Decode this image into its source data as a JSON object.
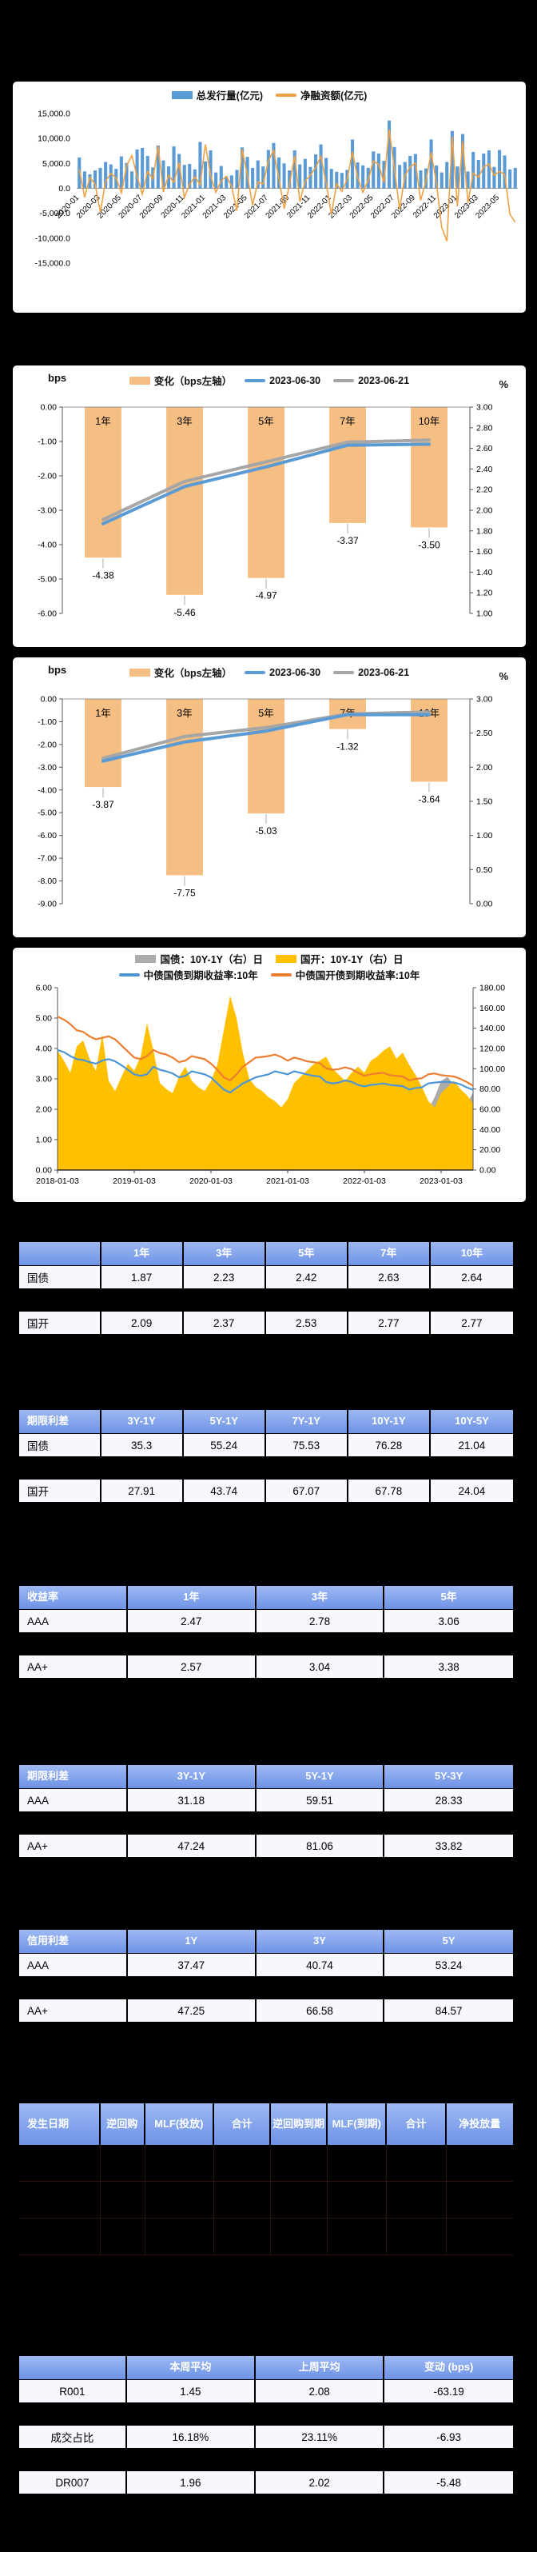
{
  "page": {
    "background": "#000000",
    "card_background": "#ffffff",
    "table_header_color": "#7d9fe8"
  },
  "chart_data": [
    {
      "id": "issuance",
      "type": "bar",
      "title": "",
      "legend": [
        "总发行量(亿元)",
        "净融资额(亿元)"
      ],
      "legend_position": "top",
      "bar_color": "#5b9bd5",
      "line_color": "#efa143",
      "ylim": [
        -15000,
        15000
      ],
      "ytick": 5000,
      "grid": false,
      "x_tick_labels": [
        "2020-01",
        "2020-03",
        "2020-05",
        "2020-07",
        "2020-09",
        "2020-11",
        "2021-01",
        "2021-03",
        "2021-05",
        "2021-07",
        "2021-09",
        "2021-11",
        "2022-01",
        "2022-03",
        "2022-05",
        "2022-07",
        "2022-09",
        "2022-11",
        "2023-01",
        "2023-03",
        "2023-05"
      ],
      "bars": [
        6200,
        3400,
        2800,
        3600,
        4100,
        5300,
        4800,
        3900,
        6400,
        5100,
        3400,
        7800,
        8100,
        6500,
        4200,
        8600,
        5600,
        4400,
        8400,
        6900,
        4700,
        4900,
        3800,
        9300,
        5400,
        7600,
        3200,
        4500,
        2400,
        2600,
        3700,
        8200,
        6300,
        4100,
        5600,
        4400,
        7700,
        9100,
        6200,
        5000,
        3600,
        7600,
        4800,
        5900,
        4300,
        6800,
        8800,
        6100,
        3900,
        3300,
        3100,
        3700,
        9800,
        5200,
        4600,
        4100,
        7400,
        7000,
        5500,
        13600,
        8300,
        4700,
        5300,
        6500,
        6900,
        3600,
        4000,
        9800,
        4600,
        3200,
        5300,
        11500,
        4400,
        10900,
        3400,
        7300,
        5700,
        7000,
        7600,
        4300,
        7700,
        6600,
        3800,
        4100
      ],
      "line": [
        3800,
        -1800,
        2200,
        800,
        -4800,
        1400,
        3000,
        2100,
        -900,
        4500,
        6600,
        2400,
        -1200,
        3400,
        1900,
        8500,
        -700,
        2600,
        1200,
        5200,
        -1900,
        800,
        2300,
        700,
        8800,
        2500,
        -800,
        1500,
        2400,
        400,
        -4500,
        7800,
        2600,
        -3400,
        1300,
        900,
        5600,
        7600,
        2000,
        -4100,
        600,
        6500,
        -2700,
        1500,
        2600,
        4200,
        6400,
        1100,
        -5200,
        900,
        -600,
        1800,
        7300,
        2100,
        -800,
        1600,
        5500,
        4800,
        1200,
        11800,
        3900,
        -4200,
        2600,
        4300,
        5100,
        -2400,
        1500,
        7200,
        1100,
        -7800,
        -10600,
        10400,
        -3600,
        9400,
        -2900,
        3100,
        2200,
        4300,
        4900,
        2600,
        3400,
        2800,
        -5200,
        -6800
      ]
    },
    {
      "id": "treasury_curve",
      "type": "bar",
      "left_unit": "bps",
      "right_unit": "%",
      "legend": [
        "变化（bps左轴）",
        "2023-06-30",
        "2023-06-21"
      ],
      "categories": [
        "1年",
        "3年",
        "5年",
        "7年",
        "10年"
      ],
      "bar_values": [
        -4.38,
        -5.46,
        -4.97,
        -3.37,
        -3.5
      ],
      "line_current": [
        1.87,
        2.23,
        2.42,
        2.63,
        2.64
      ],
      "line_previous": [
        1.91,
        2.28,
        2.47,
        2.66,
        2.68
      ],
      "bar_color": "#f5be82",
      "curr_color": "#5b9bd5",
      "prev_color": "#a6a6a6",
      "left_ylim": [
        -6,
        0
      ],
      "left_tick": 1,
      "right_ylim": [
        1,
        3
      ],
      "right_tick": 0.2
    },
    {
      "id": "cdb_curve",
      "type": "bar",
      "left_unit": "bps",
      "right_unit": "%",
      "legend": [
        "变化（bps左轴）",
        "2023-06-30",
        "2023-06-21"
      ],
      "categories": [
        "1年",
        "3年",
        "5年",
        "7年",
        "10年"
      ],
      "bar_values": [
        -3.87,
        -7.75,
        -5.03,
        -1.32,
        -3.64
      ],
      "line_current": [
        2.09,
        2.37,
        2.53,
        2.77,
        2.77
      ],
      "line_previous": [
        2.13,
        2.45,
        2.58,
        2.78,
        2.81
      ],
      "bar_color": "#f5be82",
      "curr_color": "#5b9bd5",
      "prev_color": "#a6a6a6",
      "left_ylim": [
        -9,
        0
      ],
      "left_tick": 1,
      "right_ylim": [
        0,
        3
      ],
      "right_tick": 0.5
    },
    {
      "id": "spread_10y_1y",
      "type": "area",
      "legend_areas": [
        "国债：10Y-1Y（右）日",
        "国开：10Y-1Y（右）日"
      ],
      "legend_lines": [
        "中债国债到期收益率:10年",
        "中债国开债到期收益率:10年"
      ],
      "gray": "#ababab",
      "gold": "#ffc000",
      "treasury_line_color": "#4c96d7",
      "cdb_line_color": "#ed7d31",
      "left_ylim": [
        0,
        6
      ],
      "left_tick": 1,
      "right_ylim": [
        0,
        180
      ],
      "right_tick": 20,
      "x_tick_labels": [
        "2018-01-03",
        "2019-01-03",
        "2020-01-03",
        "2021-01-03",
        "2022-01-03",
        "2023-01-03"
      ],
      "area_treasury_spread": [
        82,
        70,
        62,
        88,
        92,
        76,
        66,
        98,
        58,
        50,
        62,
        74,
        66,
        78,
        108,
        84,
        56,
        52,
        50,
        64,
        72,
        60,
        56,
        52,
        60,
        74,
        102,
        132,
        112,
        82,
        62,
        56,
        52,
        48,
        44,
        40,
        48,
        62,
        66,
        72,
        78,
        82,
        86,
        74,
        68,
        62,
        70,
        76,
        70,
        82,
        86,
        90,
        94,
        82,
        88,
        76,
        66,
        58,
        60,
        72,
        88,
        92,
        84,
        70,
        64,
        77
      ],
      "area_cdb_spread": [
        118,
        108,
        96,
        122,
        128,
        110,
        98,
        134,
        88,
        78,
        92,
        105,
        98,
        112,
        145,
        118,
        86,
        80,
        76,
        92,
        102,
        88,
        82,
        78,
        88,
        104,
        138,
        172,
        150,
        115,
        90,
        82,
        78,
        72,
        68,
        62,
        70,
        86,
        92,
        98,
        104,
        108,
        112,
        100,
        94,
        88,
        96,
        102,
        96,
        108,
        112,
        118,
        122,
        110,
        116,
        104,
        94,
        82,
        68,
        62,
        76,
        82,
        88,
        80,
        74,
        66
      ],
      "line_treasury_10y": [
        3.95,
        3.88,
        3.75,
        3.65,
        3.62,
        3.55,
        3.5,
        3.6,
        3.65,
        3.58,
        3.45,
        3.3,
        3.15,
        3.1,
        3.15,
        3.4,
        3.3,
        3.25,
        3.18,
        3.05,
        3.1,
        3.25,
        3.2,
        3.15,
        3.05,
        2.85,
        2.65,
        2.55,
        2.7,
        2.85,
        2.95,
        3.05,
        3.1,
        3.15,
        3.25,
        3.2,
        3.15,
        3.25,
        3.2,
        3.15,
        3.1,
        3.08,
        2.9,
        2.85,
        2.88,
        2.95,
        2.9,
        2.8,
        2.75,
        2.8,
        2.82,
        2.85,
        2.8,
        2.78,
        2.76,
        2.65,
        2.7,
        2.72,
        2.85,
        2.88,
        2.9,
        2.9,
        2.88,
        2.82,
        2.72,
        2.64
      ],
      "line_cdb_10y": [
        5.05,
        4.95,
        4.8,
        4.6,
        4.55,
        4.4,
        4.3,
        4.35,
        4.4,
        4.3,
        4.1,
        3.9,
        3.7,
        3.65,
        3.75,
        3.95,
        3.85,
        3.8,
        3.7,
        3.55,
        3.6,
        3.75,
        3.7,
        3.65,
        3.5,
        3.3,
        3.05,
        2.95,
        3.15,
        3.4,
        3.55,
        3.7,
        3.72,
        3.75,
        3.8,
        3.72,
        3.6,
        3.7,
        3.65,
        3.58,
        3.55,
        3.52,
        3.35,
        3.3,
        3.32,
        3.38,
        3.32,
        3.2,
        3.1,
        3.15,
        3.18,
        3.2,
        3.12,
        3.1,
        3.08,
        2.95,
        3.0,
        3.02,
        3.15,
        3.18,
        3.12,
        3.1,
        3.08,
        3.0,
        2.9,
        2.77
      ]
    }
  ],
  "tables": [
    {
      "name": "interest-rate-yield",
      "header": [
        "",
        "1年",
        "3年",
        "5年",
        "7年",
        "10年"
      ],
      "rows": [
        [
          "国债",
          "1.87",
          "2.23",
          "2.42",
          "2.63",
          "2.64"
        ],
        [
          "国开",
          "2.09",
          "2.37",
          "2.53",
          "2.77",
          "2.77"
        ]
      ],
      "widths": [
        16.6,
        16.68,
        16.68,
        16.68,
        16.68,
        16.68
      ],
      "first_align": "left"
    },
    {
      "name": "interest-rate-term-spread",
      "header": [
        "期限利差",
        "3Y-1Y",
        "5Y-1Y",
        "7Y-1Y",
        "10Y-1Y",
        "10Y-5Y"
      ],
      "rows": [
        [
          "国债",
          "35.3",
          "55.24",
          "75.53",
          "76.28",
          "21.04"
        ],
        [
          "国开",
          "27.91",
          "43.74",
          "67.07",
          "67.78",
          "24.04"
        ]
      ],
      "widths": [
        16.6,
        16.68,
        16.68,
        16.68,
        16.68,
        16.68
      ],
      "first_align": "left"
    },
    {
      "name": "credit-yield",
      "header": [
        "收益率",
        "1年",
        "3年",
        "5年"
      ],
      "rows": [
        [
          "AAA",
          "2.47",
          "2.78",
          "3.06"
        ],
        [
          "AA+",
          "2.57",
          "3.04",
          "3.38"
        ]
      ],
      "widths": [
        22,
        26,
        26,
        26
      ],
      "first_align": "left"
    },
    {
      "name": "credit-term-spread",
      "header": [
        "期限利差",
        "3Y-1Y",
        "5Y-1Y",
        "5Y-3Y"
      ],
      "rows": [
        [
          "AAA",
          "31.18",
          "59.51",
          "28.33"
        ],
        [
          "AA+",
          "47.24",
          "81.06",
          "33.82"
        ]
      ],
      "widths": [
        22,
        26,
        26,
        26
      ],
      "first_align": "left"
    },
    {
      "name": "credit-spread",
      "header": [
        "信用利差",
        "1Y",
        "3Y",
        "5Y"
      ],
      "rows": [
        [
          "AAA",
          "37.47",
          "40.74",
          "53.24"
        ],
        [
          "AA+",
          "47.25",
          "66.58",
          "84.57"
        ]
      ],
      "widths": [
        22,
        26,
        26,
        26
      ],
      "first_align": "left"
    },
    {
      "name": "open-market-operations",
      "header": [
        "发生日期",
        "逆回购",
        "MLF(投放)",
        "合计",
        "逆回购到期",
        "MLF(到期)",
        "合计",
        "净投放量"
      ],
      "rows": [],
      "empty_rows": 3,
      "tall_header": true,
      "widths": [
        16.5,
        9,
        14,
        11.5,
        11.5,
        12,
        12,
        13.5
      ],
      "first_align": "left"
    },
    {
      "name": "money-market-rates",
      "header": [
        "",
        "本周平均",
        "上周平均",
        "变动 (bps)"
      ],
      "rows": [
        [
          "R001",
          "1.45",
          "2.08",
          "-63.19"
        ],
        [
          "成交占比",
          "16.18%",
          "23.11%",
          "-6.93"
        ],
        [
          "DR007",
          "1.96",
          "2.02",
          "-5.48"
        ]
      ],
      "widths": [
        21.8,
        26.1,
        26.1,
        26
      ],
      "first_align": "center"
    }
  ]
}
